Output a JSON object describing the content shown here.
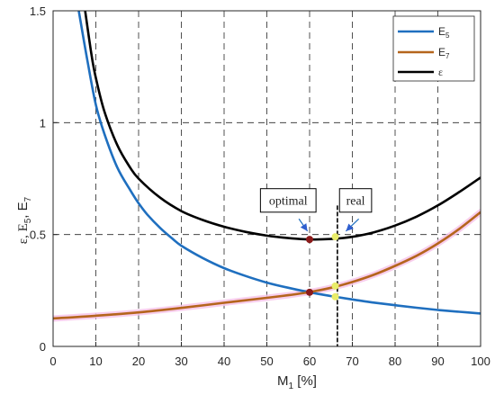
{
  "chart_data": {
    "type": "line",
    "xlabel": "M",
    "xlabel_sub": "1",
    "xlabel_unit": " [%]",
    "ylabel": "ε, E",
    "ylabel_sub1": "5",
    "ylabel_mid": ", E",
    "ylabel_sub2": "7",
    "xlim": [
      0,
      100
    ],
    "ylim": [
      0,
      1.5
    ],
    "grid": true,
    "grid_style": "dashed",
    "xticks": [
      "0",
      "10",
      "20",
      "30",
      "40",
      "50",
      "60",
      "70",
      "80",
      "90",
      "100"
    ],
    "yticks": [
      "0",
      "0.5",
      "1",
      "1.5"
    ],
    "legend_position": "top-right",
    "series": [
      {
        "name": "E",
        "name_sub": "5",
        "color": "#1f6fbf",
        "x": [
          6,
          8,
          10,
          12,
          15,
          18,
          20,
          22,
          25,
          28,
          30,
          35,
          40,
          45,
          50,
          55,
          60,
          65,
          70,
          75,
          80,
          85,
          90,
          95,
          100
        ],
        "y": [
          1.5,
          1.28,
          1.08,
          0.95,
          0.8,
          0.7,
          0.64,
          0.59,
          0.53,
          0.48,
          0.45,
          0.395,
          0.35,
          0.315,
          0.285,
          0.262,
          0.242,
          0.225,
          0.21,
          0.196,
          0.184,
          0.173,
          0.163,
          0.155,
          0.147
        ]
      },
      {
        "name": "E",
        "name_sub": "7",
        "color": "#b5651d",
        "highlight_color": "#f7c6ea",
        "x": [
          0,
          10,
          20,
          30,
          40,
          50,
          55,
          60,
          65,
          70,
          75,
          80,
          85,
          90,
          95,
          100
        ],
        "y": [
          0.125,
          0.137,
          0.152,
          0.172,
          0.195,
          0.217,
          0.229,
          0.243,
          0.262,
          0.288,
          0.32,
          0.36,
          0.405,
          0.46,
          0.525,
          0.6
        ]
      },
      {
        "name": "ε",
        "name_sub": "",
        "color": "#000000",
        "x": [
          7.5,
          9,
          10,
          12,
          15,
          18,
          20,
          25,
          30,
          35,
          40,
          45,
          50,
          55,
          60,
          65,
          70,
          75,
          80,
          85,
          90,
          95,
          100
        ],
        "y": [
          1.5,
          1.3,
          1.2,
          1.05,
          0.9,
          0.8,
          0.75,
          0.665,
          0.605,
          0.565,
          0.535,
          0.512,
          0.495,
          0.484,
          0.478,
          0.48,
          0.49,
          0.51,
          0.54,
          0.58,
          0.63,
          0.69,
          0.755
        ]
      }
    ],
    "markers": [
      {
        "x": 60,
        "y": 0.478,
        "color": "#8b1a1a"
      },
      {
        "x": 60,
        "y": 0.242,
        "color": "#8b1a1a"
      },
      {
        "x": 66,
        "y": 0.49,
        "color": "#e8ec6a"
      },
      {
        "x": 66,
        "y": 0.27,
        "color": "#e8ec6a"
      },
      {
        "x": 66,
        "y": 0.222,
        "color": "#e8ec6a"
      }
    ],
    "vline": {
      "x": 66.5,
      "y_top": 0.63
    },
    "annotations": [
      {
        "label": "optimal",
        "box_x": [
          48.5,
          61.5
        ],
        "box_y": [
          0.705,
          0.6
        ],
        "arrow_from": [
          57.5,
          0.57
        ],
        "arrow_to": [
          59.5,
          0.515
        ]
      },
      {
        "label": "real",
        "box_x": [
          67,
          74.5
        ],
        "box_y": [
          0.705,
          0.6
        ],
        "arrow_from": [
          71.5,
          0.57
        ],
        "arrow_to": [
          68.5,
          0.515
        ]
      }
    ]
  }
}
